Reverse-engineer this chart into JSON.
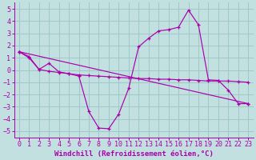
{
  "xlabel": "Windchill (Refroidissement éolien,°C)",
  "xlim": [
    -0.5,
    23.5
  ],
  "ylim": [
    -5.5,
    5.5
  ],
  "xticks": [
    0,
    1,
    2,
    3,
    4,
    5,
    6,
    7,
    8,
    9,
    10,
    11,
    12,
    13,
    14,
    15,
    16,
    17,
    18,
    19,
    20,
    21,
    22,
    23
  ],
  "yticks": [
    -5,
    -4,
    -3,
    -2,
    -1,
    0,
    1,
    2,
    3,
    4,
    5
  ],
  "bg_color": "#c2e0e0",
  "line_color": "#aa00aa",
  "grid_color": "#a0c8c8",
  "line1_x": [
    0,
    1,
    2,
    3,
    4,
    5,
    6,
    7,
    8,
    9,
    10,
    11,
    12,
    13,
    14,
    15,
    16,
    17,
    18,
    19,
    20,
    21,
    22,
    23
  ],
  "line1_y": [
    1.5,
    1.1,
    0.05,
    0.55,
    -0.15,
    -0.3,
    -0.5,
    -3.4,
    -4.75,
    -4.8,
    -3.6,
    -1.5,
    1.9,
    2.6,
    3.2,
    3.3,
    3.5,
    4.9,
    3.7,
    -0.8,
    -0.85,
    -1.65,
    -2.75,
    -2.75
  ],
  "line2_x": [
    0,
    1,
    2,
    3,
    4,
    5,
    6,
    7,
    8,
    9,
    10,
    11,
    12,
    13,
    14,
    15,
    16,
    17,
    18,
    19,
    20,
    21,
    22,
    23
  ],
  "line2_y": [
    1.5,
    1.0,
    0.05,
    -0.1,
    -0.2,
    -0.3,
    -0.4,
    -0.45,
    -0.5,
    -0.55,
    -0.6,
    -0.65,
    -0.7,
    -0.7,
    -0.75,
    -0.75,
    -0.8,
    -0.8,
    -0.85,
    -0.9,
    -0.9,
    -0.9,
    -0.95,
    -1.0
  ],
  "line3_x": [
    0,
    23
  ],
  "line3_y": [
    1.5,
    -2.75
  ],
  "font_name": "monospace",
  "xlabel_fontsize": 6.5,
  "tick_fontsize": 6.0
}
